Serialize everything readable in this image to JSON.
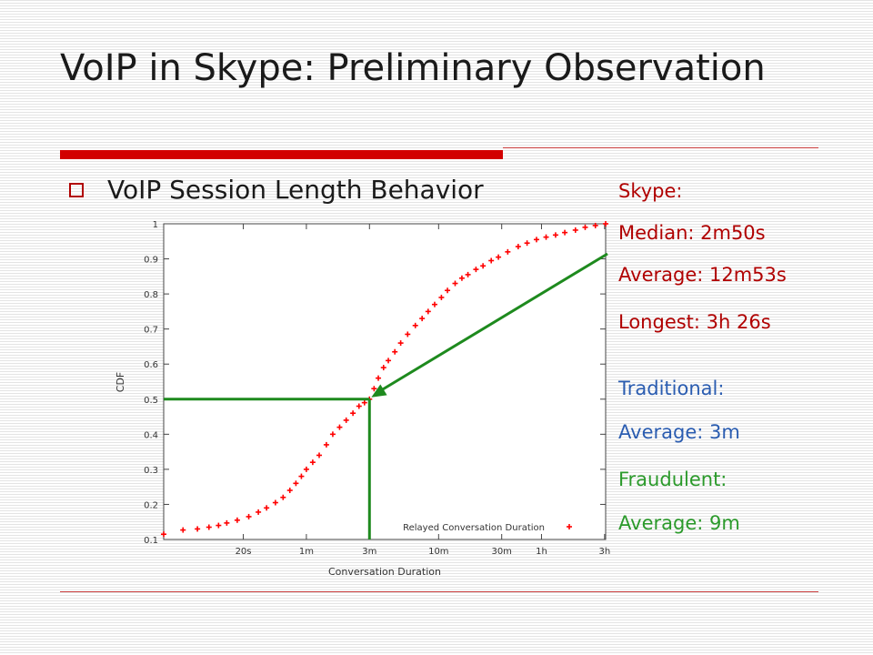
{
  "slide": {
    "title": "VoIP in Skype: Preliminary Observation",
    "bullet": "VoIP Session Length Behavior"
  },
  "stats": {
    "skype_header": "Skype:",
    "median": "Median: 2m50s",
    "average": "Average: 12m53s",
    "longest": "Longest: 3h 26s",
    "traditional_header": "Traditional:",
    "traditional_average": "Average: 3m",
    "fraudulent_header": "Fraudulent:",
    "fraudulent_average": "Average: 9m"
  },
  "colors": {
    "series": "#ff0000",
    "annotation": "#1e8a1e",
    "title_bar": "#d20000"
  },
  "chart_data": {
    "type": "scatter",
    "title": "",
    "xlabel": "Conversation Duration",
    "ylabel": "CDF",
    "x_scale": "log",
    "xlim_seconds": [
      5,
      11000
    ],
    "ylim": [
      0.1,
      1
    ],
    "x_ticks": [
      {
        "label": "20s",
        "seconds": 20
      },
      {
        "label": "1m",
        "seconds": 60
      },
      {
        "label": "3m",
        "seconds": 180
      },
      {
        "label": "10m",
        "seconds": 600
      },
      {
        "label": "30m",
        "seconds": 1800
      },
      {
        "label": "1h",
        "seconds": 3600
      },
      {
        "label": "3h",
        "seconds": 10800
      }
    ],
    "y_ticks": [
      "0.1",
      "0.2",
      "0.3",
      "0.4",
      "0.5",
      "0.6",
      "0.7",
      "0.8",
      "0.9",
      "1"
    ],
    "y_tick_values": [
      0.1,
      0.2,
      0.3,
      0.4,
      0.5,
      0.6,
      0.7,
      0.8,
      0.9,
      1.0
    ],
    "legend": {
      "label": "Relayed Conversation Duration",
      "placement": "bottom-right"
    },
    "series": [
      {
        "name": "Relayed Conversation Duration",
        "points": [
          [
            5,
            0.115
          ],
          [
            7,
            0.127
          ],
          [
            9,
            0.13
          ],
          [
            11,
            0.135
          ],
          [
            13,
            0.14
          ],
          [
            15,
            0.147
          ],
          [
            18,
            0.155
          ],
          [
            22,
            0.165
          ],
          [
            26,
            0.178
          ],
          [
            30,
            0.19
          ],
          [
            35,
            0.205
          ],
          [
            40,
            0.22
          ],
          [
            45,
            0.24
          ],
          [
            50,
            0.26
          ],
          [
            55,
            0.28
          ],
          [
            60,
            0.3
          ],
          [
            67,
            0.32
          ],
          [
            75,
            0.34
          ],
          [
            85,
            0.37
          ],
          [
            95,
            0.4
          ],
          [
            107,
            0.42
          ],
          [
            120,
            0.44
          ],
          [
            135,
            0.46
          ],
          [
            150,
            0.48
          ],
          [
            165,
            0.49
          ],
          [
            180,
            0.5
          ],
          [
            195,
            0.53
          ],
          [
            210,
            0.56
          ],
          [
            230,
            0.59
          ],
          [
            250,
            0.61
          ],
          [
            280,
            0.635
          ],
          [
            310,
            0.66
          ],
          [
            350,
            0.685
          ],
          [
            400,
            0.71
          ],
          [
            450,
            0.73
          ],
          [
            500,
            0.75
          ],
          [
            560,
            0.77
          ],
          [
            630,
            0.79
          ],
          [
            700,
            0.81
          ],
          [
            800,
            0.83
          ],
          [
            900,
            0.845
          ],
          [
            1000,
            0.855
          ],
          [
            1150,
            0.87
          ],
          [
            1300,
            0.88
          ],
          [
            1500,
            0.895
          ],
          [
            1700,
            0.905
          ],
          [
            2000,
            0.92
          ],
          [
            2400,
            0.935
          ],
          [
            2800,
            0.945
          ],
          [
            3300,
            0.955
          ],
          [
            3900,
            0.962
          ],
          [
            4600,
            0.968
          ],
          [
            5400,
            0.975
          ],
          [
            6500,
            0.982
          ],
          [
            7700,
            0.99
          ],
          [
            9200,
            0.995
          ],
          [
            11000,
            1.0
          ]
        ]
      }
    ]
  }
}
